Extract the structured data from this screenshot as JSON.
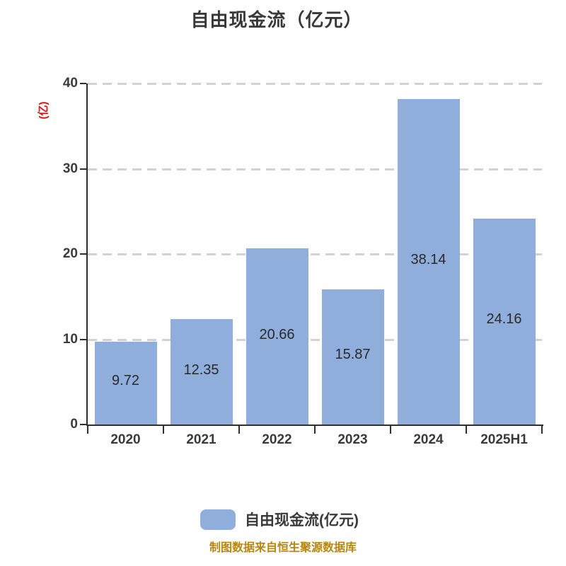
{
  "title": "自由现金流（亿元）",
  "y_axis": {
    "unit_label": "(亿)",
    "unit_label_color": "#E01010",
    "tick_labels": [
      "0",
      "10",
      "20",
      "30",
      "40"
    ]
  },
  "chart_data": {
    "type": "bar",
    "categories": [
      "2020",
      "2021",
      "2022",
      "2023",
      "2024",
      "2025H1"
    ],
    "values": [
      9.72,
      12.35,
      20.66,
      15.87,
      38.14,
      24.16
    ],
    "value_labels": [
      "9.72",
      "12.35",
      "20.66",
      "15.87",
      "38.14",
      "24.16"
    ],
    "title": "自由现金流（亿元）",
    "ylabel": "(亿)",
    "ylim": [
      0,
      40
    ],
    "y_ticks": [
      0,
      10,
      20,
      30,
      40
    ],
    "grid": "horizontal-dashed",
    "bar_color": "#8FAEDC",
    "legend_position": "bottom"
  },
  "legend": {
    "label": "自由现金流(亿元)",
    "swatch_color": "#8FAEDC"
  },
  "footer": {
    "text": "制图数据来自恒生聚源数据库",
    "color": "#B8860B"
  }
}
